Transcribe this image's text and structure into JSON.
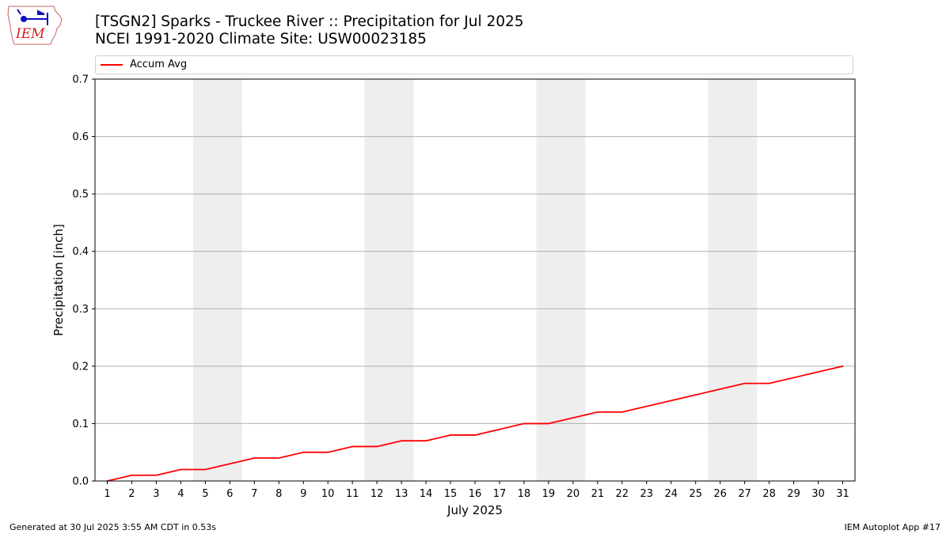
{
  "header": {
    "title": "[TSGN2] Sparks - Truckee River :: Precipitation for Jul 2025",
    "subtitle": "NCEI 1991-2020 Climate Site: USW00023185",
    "logo_text": "IEM",
    "logo_icon": "iowa-state-outline-weather-station-logo"
  },
  "footer": {
    "generated": "Generated at 30 Jul 2025 3:55 AM CDT in 0.53s",
    "app": "IEM Autoplot App #17"
  },
  "chart_data": {
    "type": "line",
    "xlabel": "July 2025",
    "ylabel": "Precipitation [inch]",
    "ylim": [
      0,
      0.7
    ],
    "xlim": [
      0.5,
      31.5
    ],
    "yticks": [
      "0.0",
      "0.1",
      "0.2",
      "0.3",
      "0.4",
      "0.5",
      "0.6",
      "0.7"
    ],
    "grid": true,
    "legend_placement": "top",
    "weekend_bands": [
      [
        4.5,
        6.5
      ],
      [
        11.5,
        13.5
      ],
      [
        18.5,
        20.5
      ],
      [
        25.5,
        27.5
      ]
    ],
    "colors": {
      "series": "#ff0000",
      "band": "#eeeeee",
      "grid": "#b0b0b0"
    },
    "x": [
      1,
      2,
      3,
      4,
      5,
      6,
      7,
      8,
      9,
      10,
      11,
      12,
      13,
      14,
      15,
      16,
      17,
      18,
      19,
      20,
      21,
      22,
      23,
      24,
      25,
      26,
      27,
      28,
      29,
      30,
      31
    ],
    "series": [
      {
        "name": "Accum Avg",
        "values": [
          0.0,
          0.01,
          0.01,
          0.02,
          0.02,
          0.03,
          0.04,
          0.04,
          0.05,
          0.05,
          0.06,
          0.06,
          0.07,
          0.07,
          0.08,
          0.08,
          0.09,
          0.1,
          0.1,
          0.11,
          0.12,
          0.12,
          0.13,
          0.14,
          0.15,
          0.16,
          0.17,
          0.17,
          0.18,
          0.19,
          0.2
        ]
      }
    ]
  }
}
